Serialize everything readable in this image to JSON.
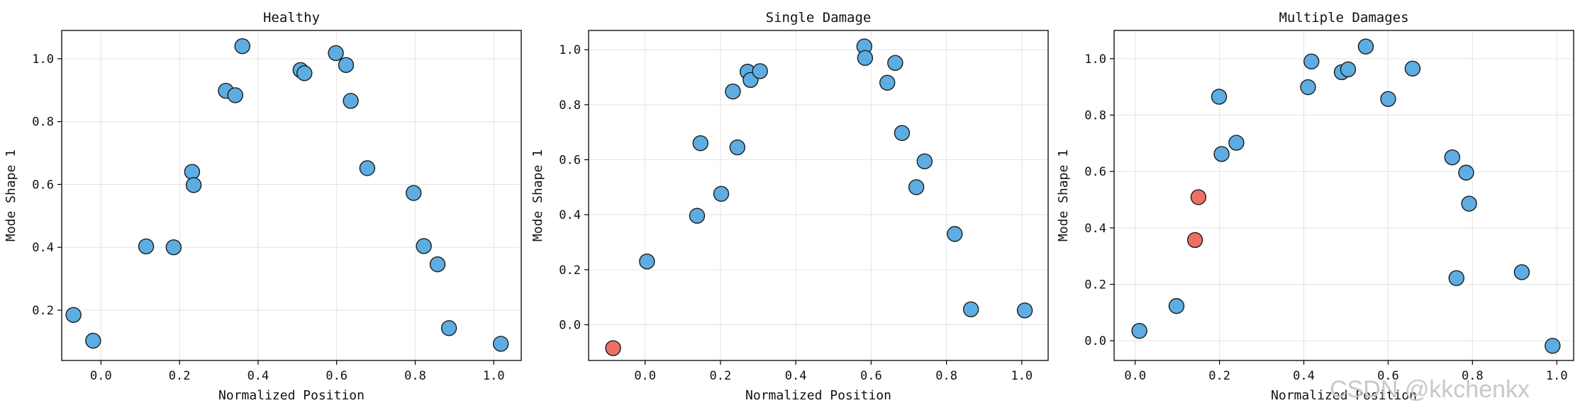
{
  "figure": {
    "watermark": "CSDN @kkchenkx"
  },
  "colors": {
    "normal": "#5DADE2",
    "damaged": "#EC7063",
    "edge": "#1a1a1a",
    "grid": "#e3e3e3"
  },
  "chart_data": [
    {
      "type": "scatter",
      "title": "Healthy",
      "xlabel": "Normalized Position",
      "ylabel": "Mode Shape 1",
      "xlim": [
        -0.1,
        1.07
      ],
      "ylim": [
        0.04,
        1.09
      ],
      "xticks": [
        0.0,
        0.2,
        0.4,
        0.6,
        0.8,
        1.0
      ],
      "xtick_labels": [
        "0.0",
        "0.2",
        "0.4",
        "0.6",
        "0.8",
        "1.0"
      ],
      "yticks": [
        0.2,
        0.4,
        0.6,
        0.8,
        1.0
      ],
      "ytick_labels": [
        "0.2",
        "0.4",
        "0.6",
        "0.8",
        "1.0"
      ],
      "grid": true,
      "points": [
        {
          "x": -0.07,
          "y": 0.185,
          "damaged": false
        },
        {
          "x": -0.02,
          "y": 0.103,
          "damaged": false
        },
        {
          "x": 0.115,
          "y": 0.403,
          "damaged": false
        },
        {
          "x": 0.185,
          "y": 0.4,
          "damaged": false
        },
        {
          "x": 0.232,
          "y": 0.64,
          "damaged": false
        },
        {
          "x": 0.236,
          "y": 0.598,
          "damaged": false
        },
        {
          "x": 0.318,
          "y": 0.898,
          "damaged": false
        },
        {
          "x": 0.342,
          "y": 0.884,
          "damaged": false
        },
        {
          "x": 0.36,
          "y": 1.04,
          "damaged": false
        },
        {
          "x": 0.508,
          "y": 0.964,
          "damaged": false
        },
        {
          "x": 0.518,
          "y": 0.954,
          "damaged": false
        },
        {
          "x": 0.598,
          "y": 1.018,
          "damaged": false
        },
        {
          "x": 0.624,
          "y": 0.98,
          "damaged": false
        },
        {
          "x": 0.636,
          "y": 0.866,
          "damaged": false
        },
        {
          "x": 0.678,
          "y": 0.652,
          "damaged": false
        },
        {
          "x": 0.796,
          "y": 0.573,
          "damaged": false
        },
        {
          "x": 0.822,
          "y": 0.404,
          "damaged": false
        },
        {
          "x": 0.857,
          "y": 0.346,
          "damaged": false
        },
        {
          "x": 0.886,
          "y": 0.143,
          "damaged": false
        },
        {
          "x": 1.018,
          "y": 0.093,
          "damaged": false
        }
      ]
    },
    {
      "type": "scatter",
      "title": "Single Damage",
      "xlabel": "Normalized Position",
      "ylabel": "Mode Shape 1",
      "xlim": [
        -0.15,
        1.07
      ],
      "ylim": [
        -0.13,
        1.07
      ],
      "xticks": [
        0.0,
        0.2,
        0.4,
        0.6,
        0.8,
        1.0
      ],
      "xtick_labels": [
        "0.0",
        "0.2",
        "0.4",
        "0.6",
        "0.8",
        "1.0"
      ],
      "yticks": [
        0.0,
        0.2,
        0.4,
        0.6,
        0.8,
        1.0
      ],
      "ytick_labels": [
        "0.0",
        "0.2",
        "0.4",
        "0.6",
        "0.8",
        "1.0"
      ],
      "grid": true,
      "points": [
        {
          "x": -0.085,
          "y": -0.085,
          "damaged": true
        },
        {
          "x": 0.005,
          "y": 0.23,
          "damaged": false
        },
        {
          "x": 0.138,
          "y": 0.396,
          "damaged": false
        },
        {
          "x": 0.147,
          "y": 0.66,
          "damaged": false
        },
        {
          "x": 0.202,
          "y": 0.476,
          "damaged": false
        },
        {
          "x": 0.233,
          "y": 0.848,
          "damaged": false
        },
        {
          "x": 0.245,
          "y": 0.645,
          "damaged": false
        },
        {
          "x": 0.272,
          "y": 0.92,
          "damaged": false
        },
        {
          "x": 0.28,
          "y": 0.89,
          "damaged": false
        },
        {
          "x": 0.305,
          "y": 0.922,
          "damaged": false
        },
        {
          "x": 0.582,
          "y": 1.012,
          "damaged": false
        },
        {
          "x": 0.584,
          "y": 0.97,
          "damaged": false
        },
        {
          "x": 0.643,
          "y": 0.88,
          "damaged": false
        },
        {
          "x": 0.664,
          "y": 0.952,
          "damaged": false
        },
        {
          "x": 0.682,
          "y": 0.697,
          "damaged": false
        },
        {
          "x": 0.72,
          "y": 0.5,
          "damaged": false
        },
        {
          "x": 0.742,
          "y": 0.594,
          "damaged": false
        },
        {
          "x": 0.822,
          "y": 0.33,
          "damaged": false
        },
        {
          "x": 0.865,
          "y": 0.056,
          "damaged": false
        },
        {
          "x": 1.008,
          "y": 0.052,
          "damaged": false
        }
      ]
    },
    {
      "type": "scatter",
      "title": "Multiple Damages",
      "xlabel": "Normalized Position",
      "ylabel": "Mode Shape 1",
      "xlim": [
        -0.05,
        1.04
      ],
      "ylim": [
        -0.07,
        1.1
      ],
      "xticks": [
        0.0,
        0.2,
        0.4,
        0.6,
        0.8,
        1.0
      ],
      "xtick_labels": [
        "0.0",
        "0.2",
        "0.4",
        "0.6",
        "0.8",
        "1.0"
      ],
      "yticks": [
        0.0,
        0.2,
        0.4,
        0.6,
        0.8,
        1.0
      ],
      "ytick_labels": [
        "0.0",
        "0.2",
        "0.4",
        "0.6",
        "0.8",
        "1.0"
      ],
      "grid": true,
      "points": [
        {
          "x": 0.01,
          "y": 0.035,
          "damaged": false
        },
        {
          "x": 0.098,
          "y": 0.123,
          "damaged": false
        },
        {
          "x": 0.142,
          "y": 0.357,
          "damaged": true
        },
        {
          "x": 0.15,
          "y": 0.509,
          "damaged": true
        },
        {
          "x": 0.199,
          "y": 0.865,
          "damaged": false
        },
        {
          "x": 0.205,
          "y": 0.662,
          "damaged": false
        },
        {
          "x": 0.24,
          "y": 0.702,
          "damaged": false
        },
        {
          "x": 0.41,
          "y": 0.899,
          "damaged": false
        },
        {
          "x": 0.418,
          "y": 0.99,
          "damaged": false
        },
        {
          "x": 0.49,
          "y": 0.952,
          "damaged": false
        },
        {
          "x": 0.505,
          "y": 0.962,
          "damaged": false
        },
        {
          "x": 0.547,
          "y": 1.043,
          "damaged": false
        },
        {
          "x": 0.6,
          "y": 0.857,
          "damaged": false
        },
        {
          "x": 0.658,
          "y": 0.965,
          "damaged": false
        },
        {
          "x": 0.752,
          "y": 0.65,
          "damaged": false
        },
        {
          "x": 0.762,
          "y": 0.222,
          "damaged": false
        },
        {
          "x": 0.785,
          "y": 0.596,
          "damaged": false
        },
        {
          "x": 0.792,
          "y": 0.486,
          "damaged": false
        },
        {
          "x": 0.917,
          "y": 0.243,
          "damaged": false
        },
        {
          "x": 0.99,
          "y": -0.018,
          "damaged": false
        }
      ]
    }
  ]
}
